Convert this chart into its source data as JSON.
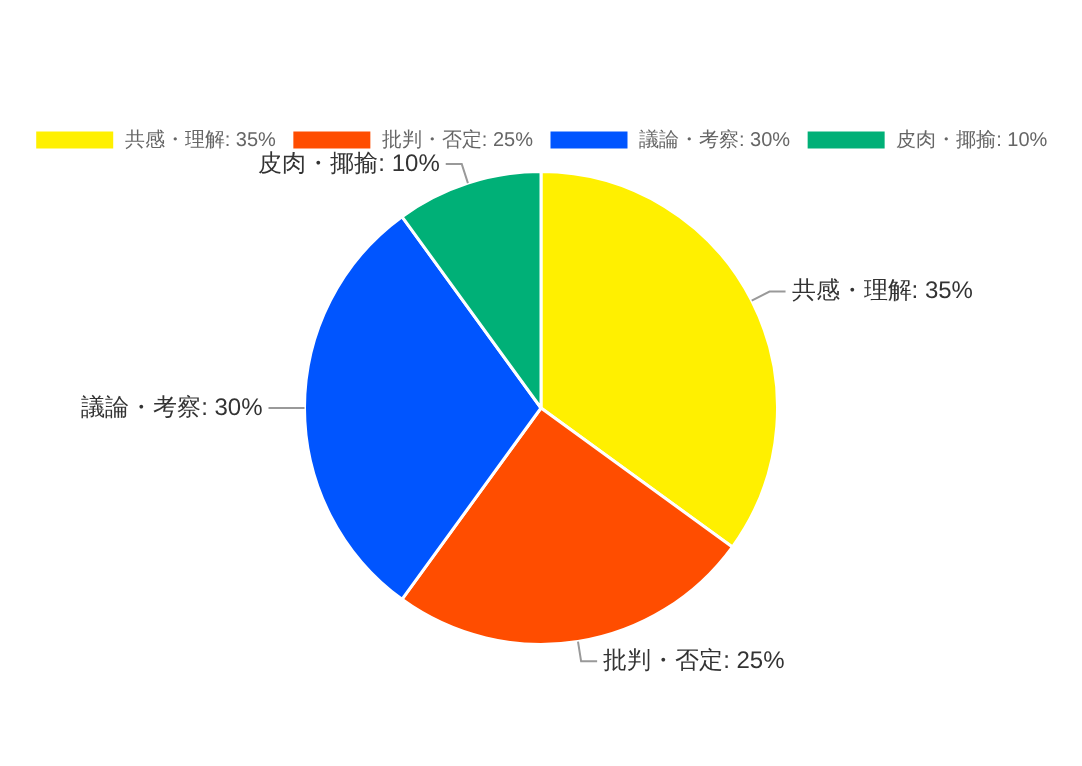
{
  "chart_data": {
    "type": "pie",
    "categories": [
      "共感・理解: 35%",
      "批判・否定: 25%",
      "議論・考察: 30%",
      "皮肉・揶揄: 10%"
    ],
    "values": [
      35,
      25,
      30,
      10
    ],
    "colors": [
      "#fff000",
      "#ff4d00",
      "#0055ff",
      "#00b077"
    ],
    "legend": "top"
  }
}
